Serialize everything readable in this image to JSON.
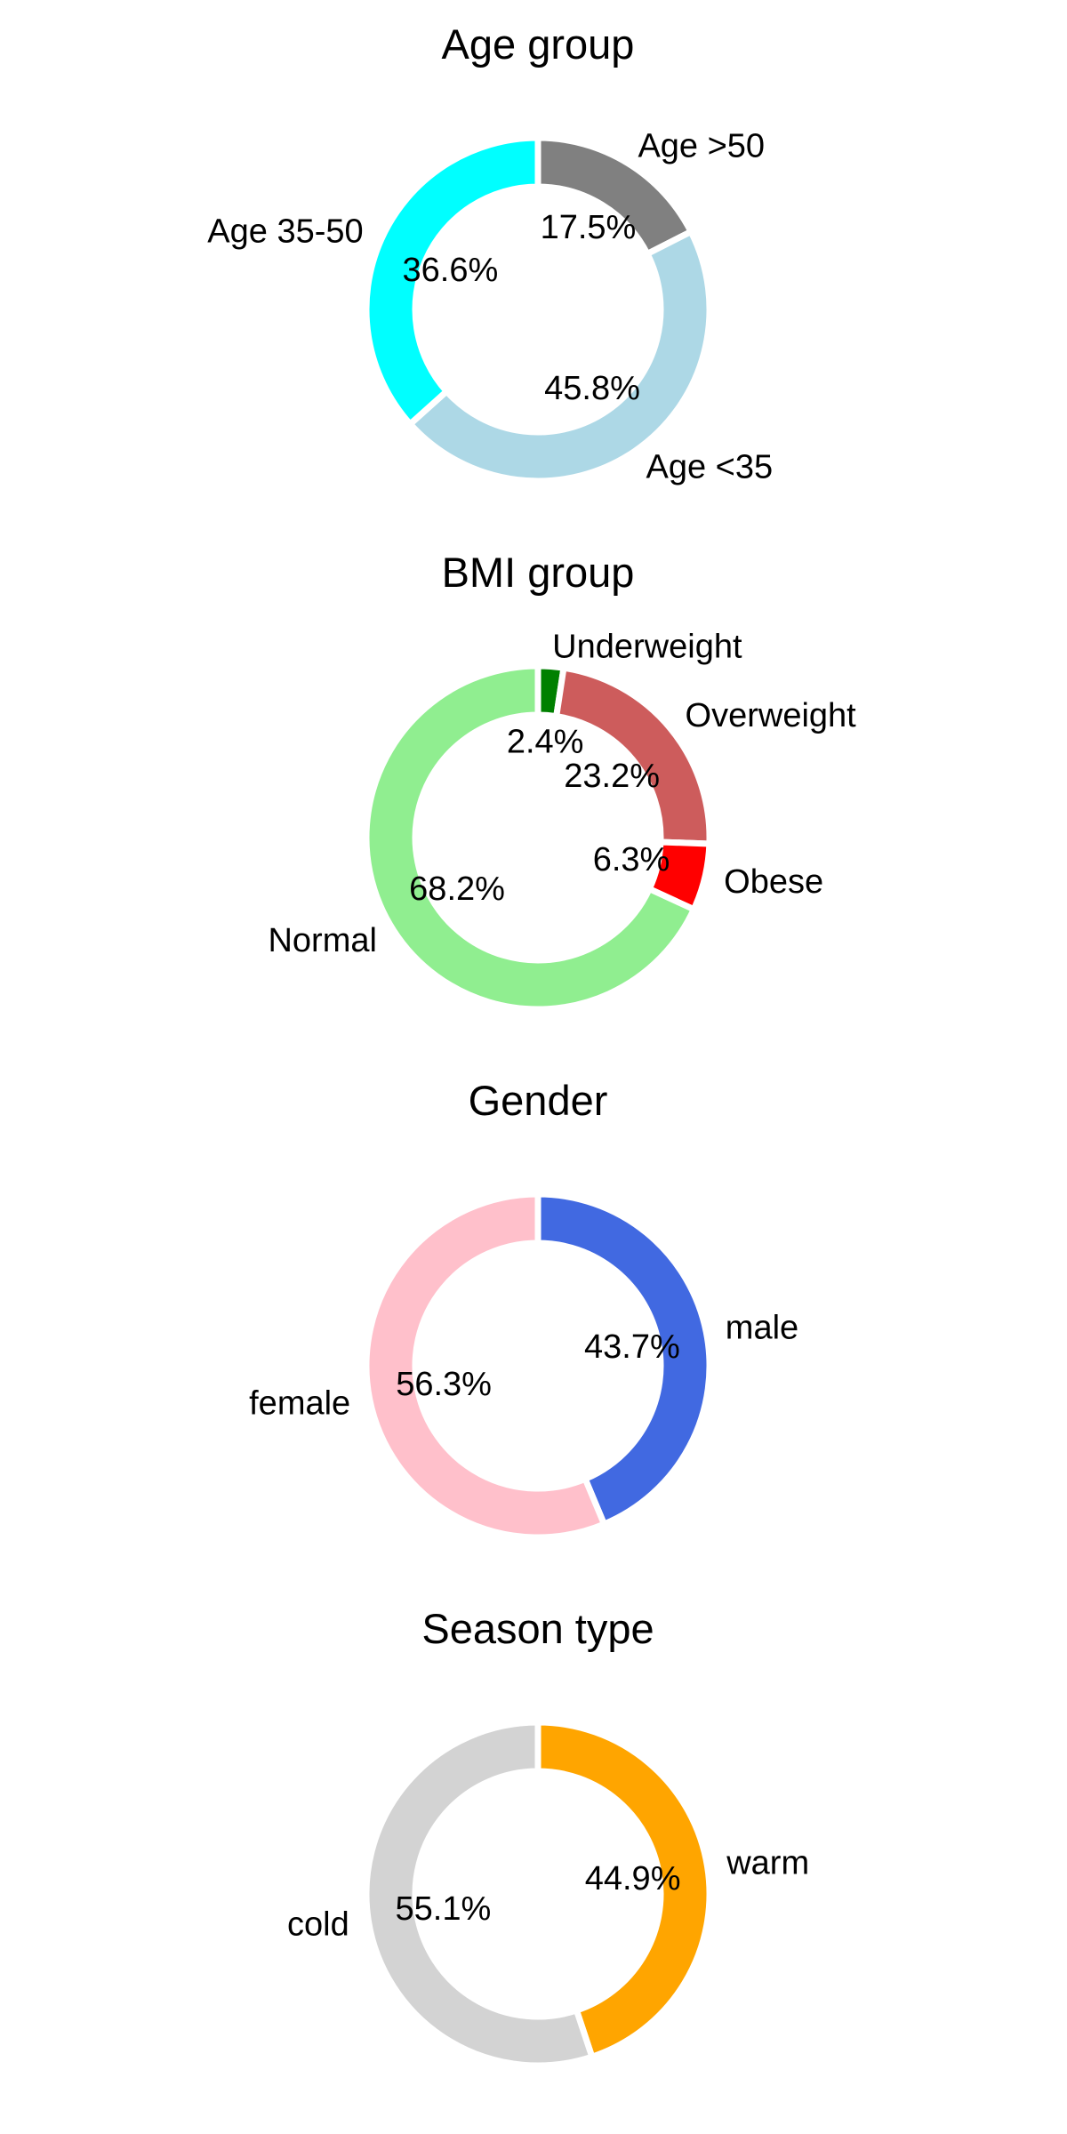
{
  "chart_data": [
    {
      "type": "pie",
      "title": "Age group",
      "slices": [
        {
          "label": "Age >50",
          "value": 17.5,
          "pct_text": "17.5%",
          "color": "#808080"
        },
        {
          "label": "Age <35",
          "value": 45.8,
          "pct_text": "45.8%",
          "color": "#add8e6"
        },
        {
          "label": "Age 35-50",
          "value": 36.6,
          "pct_text": "36.6%",
          "color": "#00ffff"
        }
      ]
    },
    {
      "type": "pie",
      "title": "BMI group",
      "slices": [
        {
          "label": "Underweight",
          "value": 2.4,
          "pct_text": "2.4%",
          "color": "#008000"
        },
        {
          "label": "Overweight",
          "value": 23.2,
          "pct_text": "23.2%",
          "color": "#cd5c5c"
        },
        {
          "label": "Obese",
          "value": 6.3,
          "pct_text": "6.3%",
          "color": "#ff0000"
        },
        {
          "label": "Normal",
          "value": 68.2,
          "pct_text": "68.2%",
          "color": "#90ee90"
        }
      ]
    },
    {
      "type": "pie",
      "title": "Gender",
      "slices": [
        {
          "label": "male",
          "value": 43.7,
          "pct_text": "43.7%",
          "color": "#4169e1"
        },
        {
          "label": "female",
          "value": 56.3,
          "pct_text": "56.3%",
          "color": "#ffc0cb"
        }
      ]
    },
    {
      "type": "pie",
      "title": "Season type",
      "slices": [
        {
          "label": "warm",
          "value": 44.9,
          "pct_text": "44.9%",
          "color": "#ffa500"
        },
        {
          "label": "cold",
          "value": 55.1,
          "pct_text": "55.1%",
          "color": "#d3d3d3"
        }
      ]
    }
  ]
}
